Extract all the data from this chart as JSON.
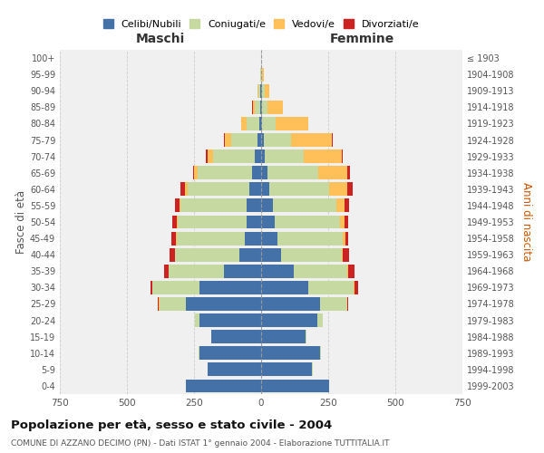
{
  "age_groups": [
    "0-4",
    "5-9",
    "10-14",
    "15-19",
    "20-24",
    "25-29",
    "30-34",
    "35-39",
    "40-44",
    "45-49",
    "50-54",
    "55-59",
    "60-64",
    "65-69",
    "70-74",
    "75-79",
    "80-84",
    "85-89",
    "90-94",
    "95-99",
    "100+"
  ],
  "birth_years": [
    "1999-2003",
    "1994-1998",
    "1989-1993",
    "1984-1988",
    "1979-1983",
    "1974-1978",
    "1969-1973",
    "1964-1968",
    "1959-1963",
    "1954-1958",
    "1949-1953",
    "1944-1948",
    "1939-1943",
    "1934-1938",
    "1929-1933",
    "1924-1928",
    "1919-1923",
    "1914-1918",
    "1909-1913",
    "1904-1908",
    "≤ 1903"
  ],
  "males": {
    "celibi": [
      280,
      200,
      230,
      185,
      230,
      280,
      230,
      140,
      80,
      60,
      55,
      55,
      45,
      35,
      25,
      15,
      8,
      4,
      2,
      1,
      0
    ],
    "coniugati": [
      0,
      0,
      2,
      2,
      15,
      100,
      175,
      205,
      240,
      255,
      255,
      245,
      230,
      200,
      155,
      95,
      45,
      18,
      8,
      2,
      0
    ],
    "vedovi": [
      0,
      0,
      0,
      0,
      0,
      1,
      1,
      1,
      2,
      3,
      5,
      5,
      10,
      15,
      20,
      25,
      20,
      10,
      5,
      1,
      0
    ],
    "divorziati": [
      0,
      0,
      0,
      0,
      1,
      3,
      5,
      15,
      20,
      15,
      15,
      15,
      15,
      5,
      5,
      2,
      1,
      1,
      0,
      0,
      0
    ]
  },
  "females": {
    "nubili": [
      255,
      190,
      220,
      165,
      210,
      220,
      175,
      120,
      75,
      60,
      50,
      45,
      32,
      22,
      15,
      10,
      5,
      3,
      2,
      1,
      0
    ],
    "coniugate": [
      0,
      1,
      3,
      5,
      20,
      100,
      170,
      200,
      225,
      245,
      245,
      235,
      220,
      190,
      145,
      100,
      50,
      22,
      10,
      3,
      0
    ],
    "vedove": [
      0,
      0,
      0,
      0,
      0,
      1,
      2,
      3,
      5,
      8,
      15,
      30,
      70,
      110,
      140,
      155,
      120,
      55,
      20,
      5,
      0
    ],
    "divorziate": [
      0,
      0,
      0,
      0,
      1,
      3,
      15,
      25,
      22,
      12,
      15,
      18,
      18,
      8,
      5,
      2,
      1,
      0,
      0,
      0,
      0
    ]
  },
  "colors": {
    "celibi_nubili": "#4472a8",
    "coniugati": "#c5d9a0",
    "vedovi": "#ffc05a",
    "divorziati": "#cc2222"
  },
  "title": "Popolazione per età, sesso e stato civile - 2004",
  "subtitle": "COMUNE DI AZZANO DECIMO (PN) - Dati ISTAT 1° gennaio 2004 - Elaborazione TUTTITALIA.IT",
  "xlabel_left": "Maschi",
  "xlabel_right": "Femmine",
  "ylabel_left": "Fasce di età",
  "ylabel_right": "Anni di nascita",
  "xlim": 750,
  "bg_color": "#f0f0f0",
  "grid_color": "#cccccc"
}
